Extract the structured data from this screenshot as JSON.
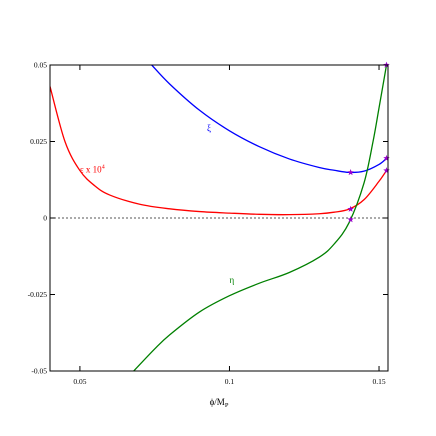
{
  "chart_data": {
    "type": "line",
    "title": "",
    "xlabel": "ϕ/M",
    "xlabel_sub": "P",
    "ylabel": "",
    "xlim": [
      0.04,
      0.153
    ],
    "ylim": [
      -0.05,
      0.05
    ],
    "xticks": [
      0.05,
      0.1,
      0.15
    ],
    "xtick_labels": [
      "0.05",
      "0.1",
      "0.15"
    ],
    "yticks": [
      0.05,
      0.025,
      0,
      -0.025,
      -0.05
    ],
    "ytick_labels": [
      "0.05",
      "0.025",
      "0",
      "-0.025",
      "-0.05"
    ],
    "grid": false,
    "legend": "none",
    "zero_line": {
      "y": 0,
      "style": "dashed",
      "color": "#555555"
    },
    "series": [
      {
        "name": "ε x 10",
        "name_sup": "4",
        "color": "#ff0000",
        "x": [
          0.04,
          0.045,
          0.05,
          0.055,
          0.06,
          0.07,
          0.08,
          0.09,
          0.1,
          0.11,
          0.12,
          0.13,
          0.135,
          0.14,
          0.145,
          0.15,
          0.1525
        ],
        "y": [
          0.043,
          0.025,
          0.0155,
          0.0105,
          0.0075,
          0.0045,
          0.003,
          0.0021,
          0.0016,
          0.0012,
          0.0011,
          0.0014,
          0.0019,
          0.0029,
          0.006,
          0.012,
          0.0155
        ]
      },
      {
        "name": "ξ",
        "color": "#0000ff",
        "x": [
          0.074,
          0.08,
          0.09,
          0.1,
          0.11,
          0.12,
          0.13,
          0.135,
          0.14,
          0.145,
          0.15,
          0.1525
        ],
        "y": [
          0.05,
          0.0438,
          0.0352,
          0.0285,
          0.0233,
          0.0193,
          0.0165,
          0.0156,
          0.0149,
          0.0153,
          0.0175,
          0.0195
        ]
      },
      {
        "name": "η",
        "color": "#008000",
        "x": [
          0.068,
          0.075,
          0.08,
          0.09,
          0.1,
          0.11,
          0.12,
          0.13,
          0.135,
          0.14,
          0.145,
          0.148,
          0.15,
          0.1525
        ],
        "y": [
          -0.05,
          -0.0428,
          -0.0382,
          -0.0307,
          -0.0254,
          -0.0213,
          -0.0178,
          -0.0128,
          -0.0085,
          -0.0015,
          0.0115,
          0.025,
          0.036,
          0.05
        ]
      }
    ],
    "markers": {
      "color": "#9900cc",
      "points": [
        {
          "x": 0.1405,
          "y": 0.0149
        },
        {
          "x": 0.1405,
          "y": 0.0029
        },
        {
          "x": 0.1405,
          "y": -0.0005
        },
        {
          "x": 0.1525,
          "y": 0.05
        },
        {
          "x": 0.1525,
          "y": 0.0195
        },
        {
          "x": 0.1525,
          "y": 0.0155
        }
      ]
    },
    "annotations": [
      {
        "series": "ξ",
        "text": "ξ",
        "x": 0.0925,
        "y": 0.0285
      },
      {
        "series": "ε x 10",
        "text": "ε x 10",
        "sup": "4",
        "x": 0.05,
        "y": 0.0148
      },
      {
        "series": "η",
        "text": "η",
        "x": 0.1,
        "y": -0.0213
      }
    ]
  }
}
